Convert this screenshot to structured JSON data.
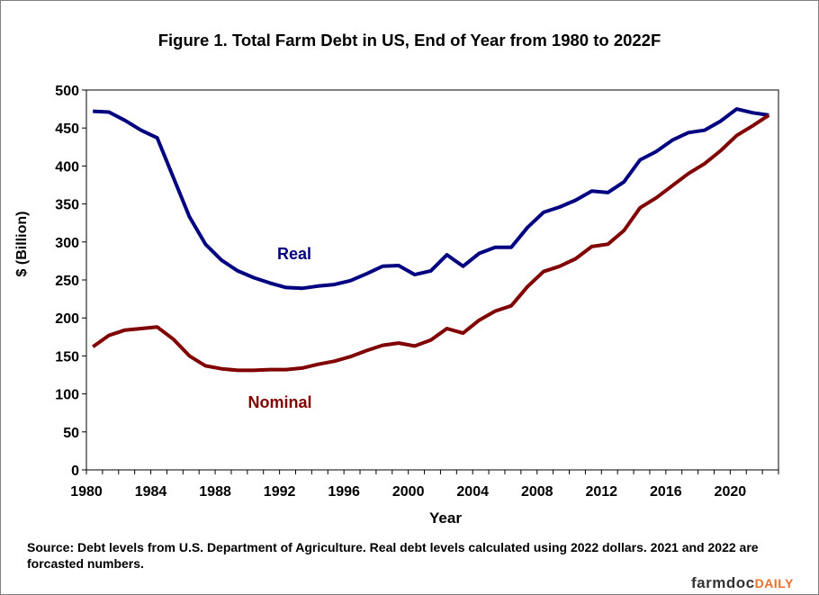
{
  "chart_data": {
    "type": "line",
    "title": "Figure  1.  Total Farm Debt in US, End of Year from 1980 to 2022F",
    "xlabel": "Year",
    "ylabel": "$ (Billion)",
    "xlim": [
      1980,
      2023
    ],
    "ylim": [
      0,
      500
    ],
    "x_ticks": [
      "1980",
      "1984",
      "1988",
      "1992",
      "1996",
      "2000",
      "2004",
      "2008",
      "2012",
      "2016",
      "2020"
    ],
    "y_ticks": [
      "0",
      "50",
      "100",
      "150",
      "200",
      "250",
      "300",
      "350",
      "400",
      "450",
      "500"
    ],
    "grid": false,
    "x": [
      1980.4,
      1981.4,
      1982.4,
      1983.4,
      1984.4,
      1985.4,
      1986.4,
      1987.4,
      1988.4,
      1989.4,
      1990.4,
      1991.4,
      1992.4,
      1993.4,
      1994.4,
      1995.4,
      1996.4,
      1997.4,
      1998.4,
      1999.4,
      2000.4,
      2001.4,
      2002.4,
      2003.4,
      2004.4,
      2005.4,
      2006.4,
      2007.4,
      2008.4,
      2009.4,
      2010.4,
      2011.4,
      2012.4,
      2013.4,
      2014.4,
      2015.4,
      2016.4,
      2017.4,
      2018.4,
      2019.4,
      2020.4,
      2021.4,
      2022.4
    ],
    "series": [
      {
        "name": "Real",
        "color": "#000080",
        "values": [
          472,
          471,
          460,
          447,
          437,
          385,
          333,
          297,
          276,
          262,
          253,
          246,
          240,
          239,
          242,
          244,
          249,
          258,
          268,
          269,
          257,
          262,
          283,
          268,
          285,
          293,
          293,
          319,
          339,
          346,
          355,
          367,
          365,
          379,
          408,
          419,
          434,
          444,
          447,
          459,
          475,
          470,
          467
        ]
      },
      {
        "name": "Nominal",
        "color": "#800000",
        "values": [
          162,
          177,
          184,
          186,
          188,
          172,
          150,
          137,
          133,
          131,
          131,
          132,
          132,
          134,
          139,
          143,
          149,
          157,
          164,
          167,
          163,
          171,
          186,
          180,
          197,
          209,
          216,
          241,
          261,
          268,
          278,
          294,
          297,
          315,
          345,
          358,
          374,
          390,
          403,
          420,
          440,
          453,
          467
        ]
      }
    ],
    "annotations": [
      "Real",
      "Nominal"
    ]
  },
  "source_note": "Source: Debt levels from U.S. Department of Agriculture.  Real debt levels calculated using 2022 dollars.   2021 and 2022 are forcasted numbers.",
  "logo": {
    "main": "farmdoc",
    "suffix": "DAILY"
  }
}
